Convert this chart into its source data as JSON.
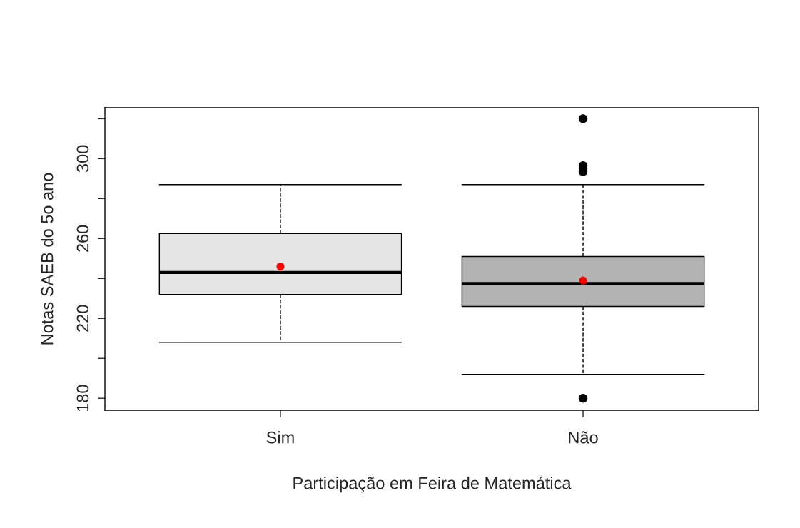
{
  "chart_data": {
    "type": "box",
    "xlabel": "Participação em Feira de Matemática",
    "ylabel": "Notas SAEB do 5o ano",
    "categories": [
      "Sim",
      "Não"
    ],
    "colors": [
      "#e5e5e5",
      "#b3b3b3"
    ],
    "boxes": [
      {
        "low": 208,
        "q1": 232,
        "median": 243,
        "q3": 262.5,
        "high": 287,
        "mean": 246
      },
      {
        "low": 192,
        "q1": 226,
        "median": 237.5,
        "q3": 251,
        "high": 287,
        "mean": 239,
        "outliers": [
          320,
          296.5,
          295,
          293.5,
          180
        ]
      }
    ],
    "ylim": [
      174,
      325.5
    ],
    "yticks": [
      180,
      {
        "value": 200,
        "label": null
      },
      220,
      {
        "value": 240,
        "label": null
      },
      260,
      {
        "value": 280,
        "label": null
      },
      300,
      {
        "value": 320,
        "label": null
      }
    ],
    "grid": false
  }
}
